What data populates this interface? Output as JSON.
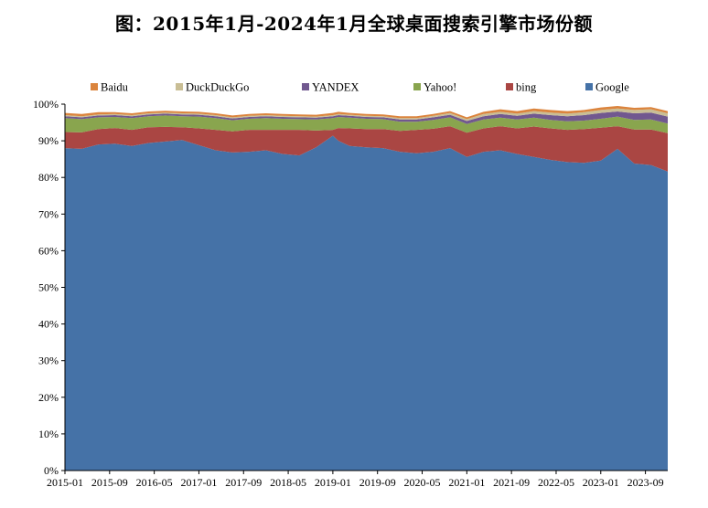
{
  "chart_data": {
    "type": "area",
    "stacked": true,
    "title": "图：2015年1月-2024年1月全球桌面搜索引擎市场份额",
    "xlabel": "",
    "ylabel": "",
    "ylim": [
      0,
      100
    ],
    "yticks": [
      0,
      10,
      20,
      30,
      40,
      50,
      60,
      70,
      80,
      90,
      100
    ],
    "ytick_labels": [
      "0%",
      "10%",
      "20%",
      "30%",
      "40%",
      "50%",
      "60%",
      "70%",
      "80%",
      "90%",
      "100%"
    ],
    "x_start": "2015-01",
    "x_end": "2024-01",
    "xtick_labels": [
      "2015-01",
      "2015-09",
      "2016-05",
      "2017-01",
      "2017-09",
      "2018-05",
      "2019-01",
      "2019-09",
      "2020-05",
      "2021-01",
      "2021-09",
      "2022-05",
      "2023-01",
      "2023-09"
    ],
    "legend_position": "top",
    "grid": false,
    "x": [
      "2015-01",
      "2015-04",
      "2015-07",
      "2015-10",
      "2016-01",
      "2016-04",
      "2016-07",
      "2016-10",
      "2017-01",
      "2017-04",
      "2017-07",
      "2017-10",
      "2018-01",
      "2018-04",
      "2018-07",
      "2018-10",
      "2019-01",
      "2019-02",
      "2019-04",
      "2019-07",
      "2019-10",
      "2020-01",
      "2020-04",
      "2020-07",
      "2020-10",
      "2021-01",
      "2021-04",
      "2021-07",
      "2021-10",
      "2022-01",
      "2022-04",
      "2022-07",
      "2022-10",
      "2023-01",
      "2023-04",
      "2023-07",
      "2023-10",
      "2024-01"
    ],
    "series": [
      {
        "name": "Google",
        "color": "#4572A7",
        "values": [
          88.0,
          87.8,
          89.0,
          89.2,
          88.6,
          89.4,
          89.8,
          90.2,
          88.8,
          87.4,
          86.8,
          87.0,
          87.4,
          86.4,
          86.0,
          88.2,
          91.4,
          90.0,
          88.6,
          88.2,
          88.0,
          87.0,
          86.6,
          87.0,
          88.0,
          85.6,
          87.0,
          87.4,
          86.4,
          85.6,
          84.8,
          84.2,
          84.0,
          84.6,
          87.8,
          83.8,
          83.4,
          81.6
        ]
      },
      {
        "name": "bing",
        "color": "#AA4643",
        "values": [
          4.4,
          4.5,
          4.2,
          4.3,
          4.4,
          4.3,
          4.0,
          3.5,
          4.6,
          5.6,
          5.8,
          6.0,
          5.6,
          6.6,
          7.0,
          4.6,
          1.6,
          3.5,
          4.8,
          5.0,
          5.2,
          5.7,
          6.4,
          6.3,
          6.0,
          6.6,
          6.4,
          6.6,
          7.0,
          8.3,
          8.6,
          8.8,
          9.2,
          9.0,
          6.2,
          9.3,
          9.7,
          10.5
        ]
      },
      {
        "name": "Yahoo!",
        "color": "#89A54E",
        "values": [
          3.8,
          3.6,
          3.2,
          3.0,
          3.2,
          3.0,
          3.1,
          3.0,
          3.2,
          3.2,
          3.0,
          3.0,
          3.2,
          3.0,
          2.9,
          3.0,
          3.2,
          3.0,
          2.9,
          2.8,
          2.7,
          2.5,
          2.2,
          2.4,
          2.4,
          2.4,
          2.4,
          2.3,
          2.4,
          2.4,
          2.3,
          2.3,
          2.3,
          2.4,
          2.6,
          2.6,
          2.7,
          2.6
        ]
      },
      {
        "name": "YANDEX",
        "color": "#71588F",
        "values": [
          0.5,
          0.5,
          0.5,
          0.5,
          0.5,
          0.5,
          0.5,
          0.5,
          0.5,
          0.5,
          0.5,
          0.5,
          0.5,
          0.5,
          0.5,
          0.5,
          0.5,
          0.5,
          0.5,
          0.5,
          0.5,
          0.6,
          0.6,
          0.7,
          0.7,
          0.8,
          0.9,
          1.0,
          1.0,
          1.1,
          1.3,
          1.4,
          1.5,
          1.6,
          1.4,
          1.8,
          1.9,
          1.9
        ]
      },
      {
        "name": "DuckDuckGo",
        "color": "#C9BE95",
        "values": [
          0.3,
          0.3,
          0.3,
          0.3,
          0.3,
          0.3,
          0.3,
          0.3,
          0.3,
          0.3,
          0.3,
          0.3,
          0.3,
          0.3,
          0.3,
          0.3,
          0.3,
          0.3,
          0.3,
          0.3,
          0.3,
          0.4,
          0.4,
          0.4,
          0.5,
          0.5,
          0.6,
          0.6,
          0.6,
          0.7,
          0.7,
          0.7,
          0.8,
          0.8,
          0.8,
          0.9,
          0.9,
          0.9
        ]
      },
      {
        "name": "Baidu",
        "color": "#DB843D",
        "values": [
          0.6,
          0.6,
          0.6,
          0.5,
          0.5,
          0.5,
          0.5,
          0.5,
          0.5,
          0.5,
          0.5,
          0.5,
          0.5,
          0.5,
          0.5,
          0.5,
          0.6,
          0.6,
          0.5,
          0.5,
          0.5,
          0.5,
          0.5,
          0.5,
          0.5,
          0.5,
          0.6,
          0.7,
          0.7,
          0.7,
          0.7,
          0.7,
          0.6,
          0.7,
          0.7,
          0.6,
          0.6,
          0.6
        ]
      }
    ]
  }
}
